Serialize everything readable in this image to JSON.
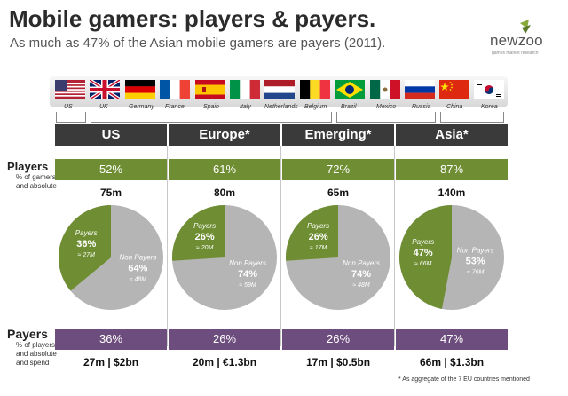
{
  "title": "Mobile gamers: players & payers.",
  "subtitle": "As much as 47% of the Asian mobile gamers are payers (2011).",
  "logo": {
    "name": "newzoo",
    "tagline": "games market research"
  },
  "colors": {
    "green": "#6f8e33",
    "purple": "#6c4d7d",
    "gray": "#b5b5b5",
    "dark": "#3a3a3a"
  },
  "countries": [
    "US",
    "UK",
    "Germany",
    "France",
    "Spain",
    "Italy",
    "Netherlands",
    "Belgium",
    "Brazil",
    "Mexico",
    "Russia",
    "China",
    "Korea"
  ],
  "row_labels": {
    "players": "Players",
    "players_sub": "% of gamers and absolute",
    "payers": "Payers",
    "payers_sub": "% of players and absolute and spend"
  },
  "footnote": "* As aggregate of the 7 EU countries mentioned",
  "chart_data": {
    "type": "pie",
    "regions": [
      {
        "name": "US",
        "players_pct": "52%",
        "players_abs": "75m",
        "payers_label": "Payers",
        "payers_pct": "36%",
        "payers_abs": "≈ 27M",
        "nonpayers_label": "Non Payers",
        "nonpayers_pct": "64%",
        "nonpayers_abs": "≈ 48M",
        "payer_share": 36,
        "bottom_pct": "36%",
        "bottom_abs": "27m | $2bn"
      },
      {
        "name": "Europe*",
        "players_pct": "61%",
        "players_abs": "80m",
        "payers_label": "Payers",
        "payers_pct": "26%",
        "payers_abs": "≈ 20M",
        "nonpayers_label": "Non Payers",
        "nonpayers_pct": "74%",
        "nonpayers_abs": "≈ 59M",
        "payer_share": 26,
        "bottom_pct": "26%",
        "bottom_abs": "20m | €1.3bn"
      },
      {
        "name": "Emerging*",
        "players_pct": "72%",
        "players_abs": "65m",
        "payers_label": "Payers",
        "payers_pct": "26%",
        "payers_abs": "≈ 17M",
        "nonpayers_label": "Non Payers",
        "nonpayers_pct": "74%",
        "nonpayers_abs": "≈ 48M",
        "payer_share": 26,
        "bottom_pct": "26%",
        "bottom_abs": "17m | $0.5bn"
      },
      {
        "name": "Asia*",
        "players_pct": "87%",
        "players_abs": "140m",
        "payers_label": "Payers",
        "payers_pct": "47%",
        "payers_abs": "≈ 66M",
        "nonpayers_label": "Non Payers",
        "nonpayers_pct": "53%",
        "nonpayers_abs": "≈ 76M",
        "payer_share": 47,
        "bottom_pct": "47%",
        "bottom_abs": "66m | $1.3bn"
      }
    ]
  }
}
